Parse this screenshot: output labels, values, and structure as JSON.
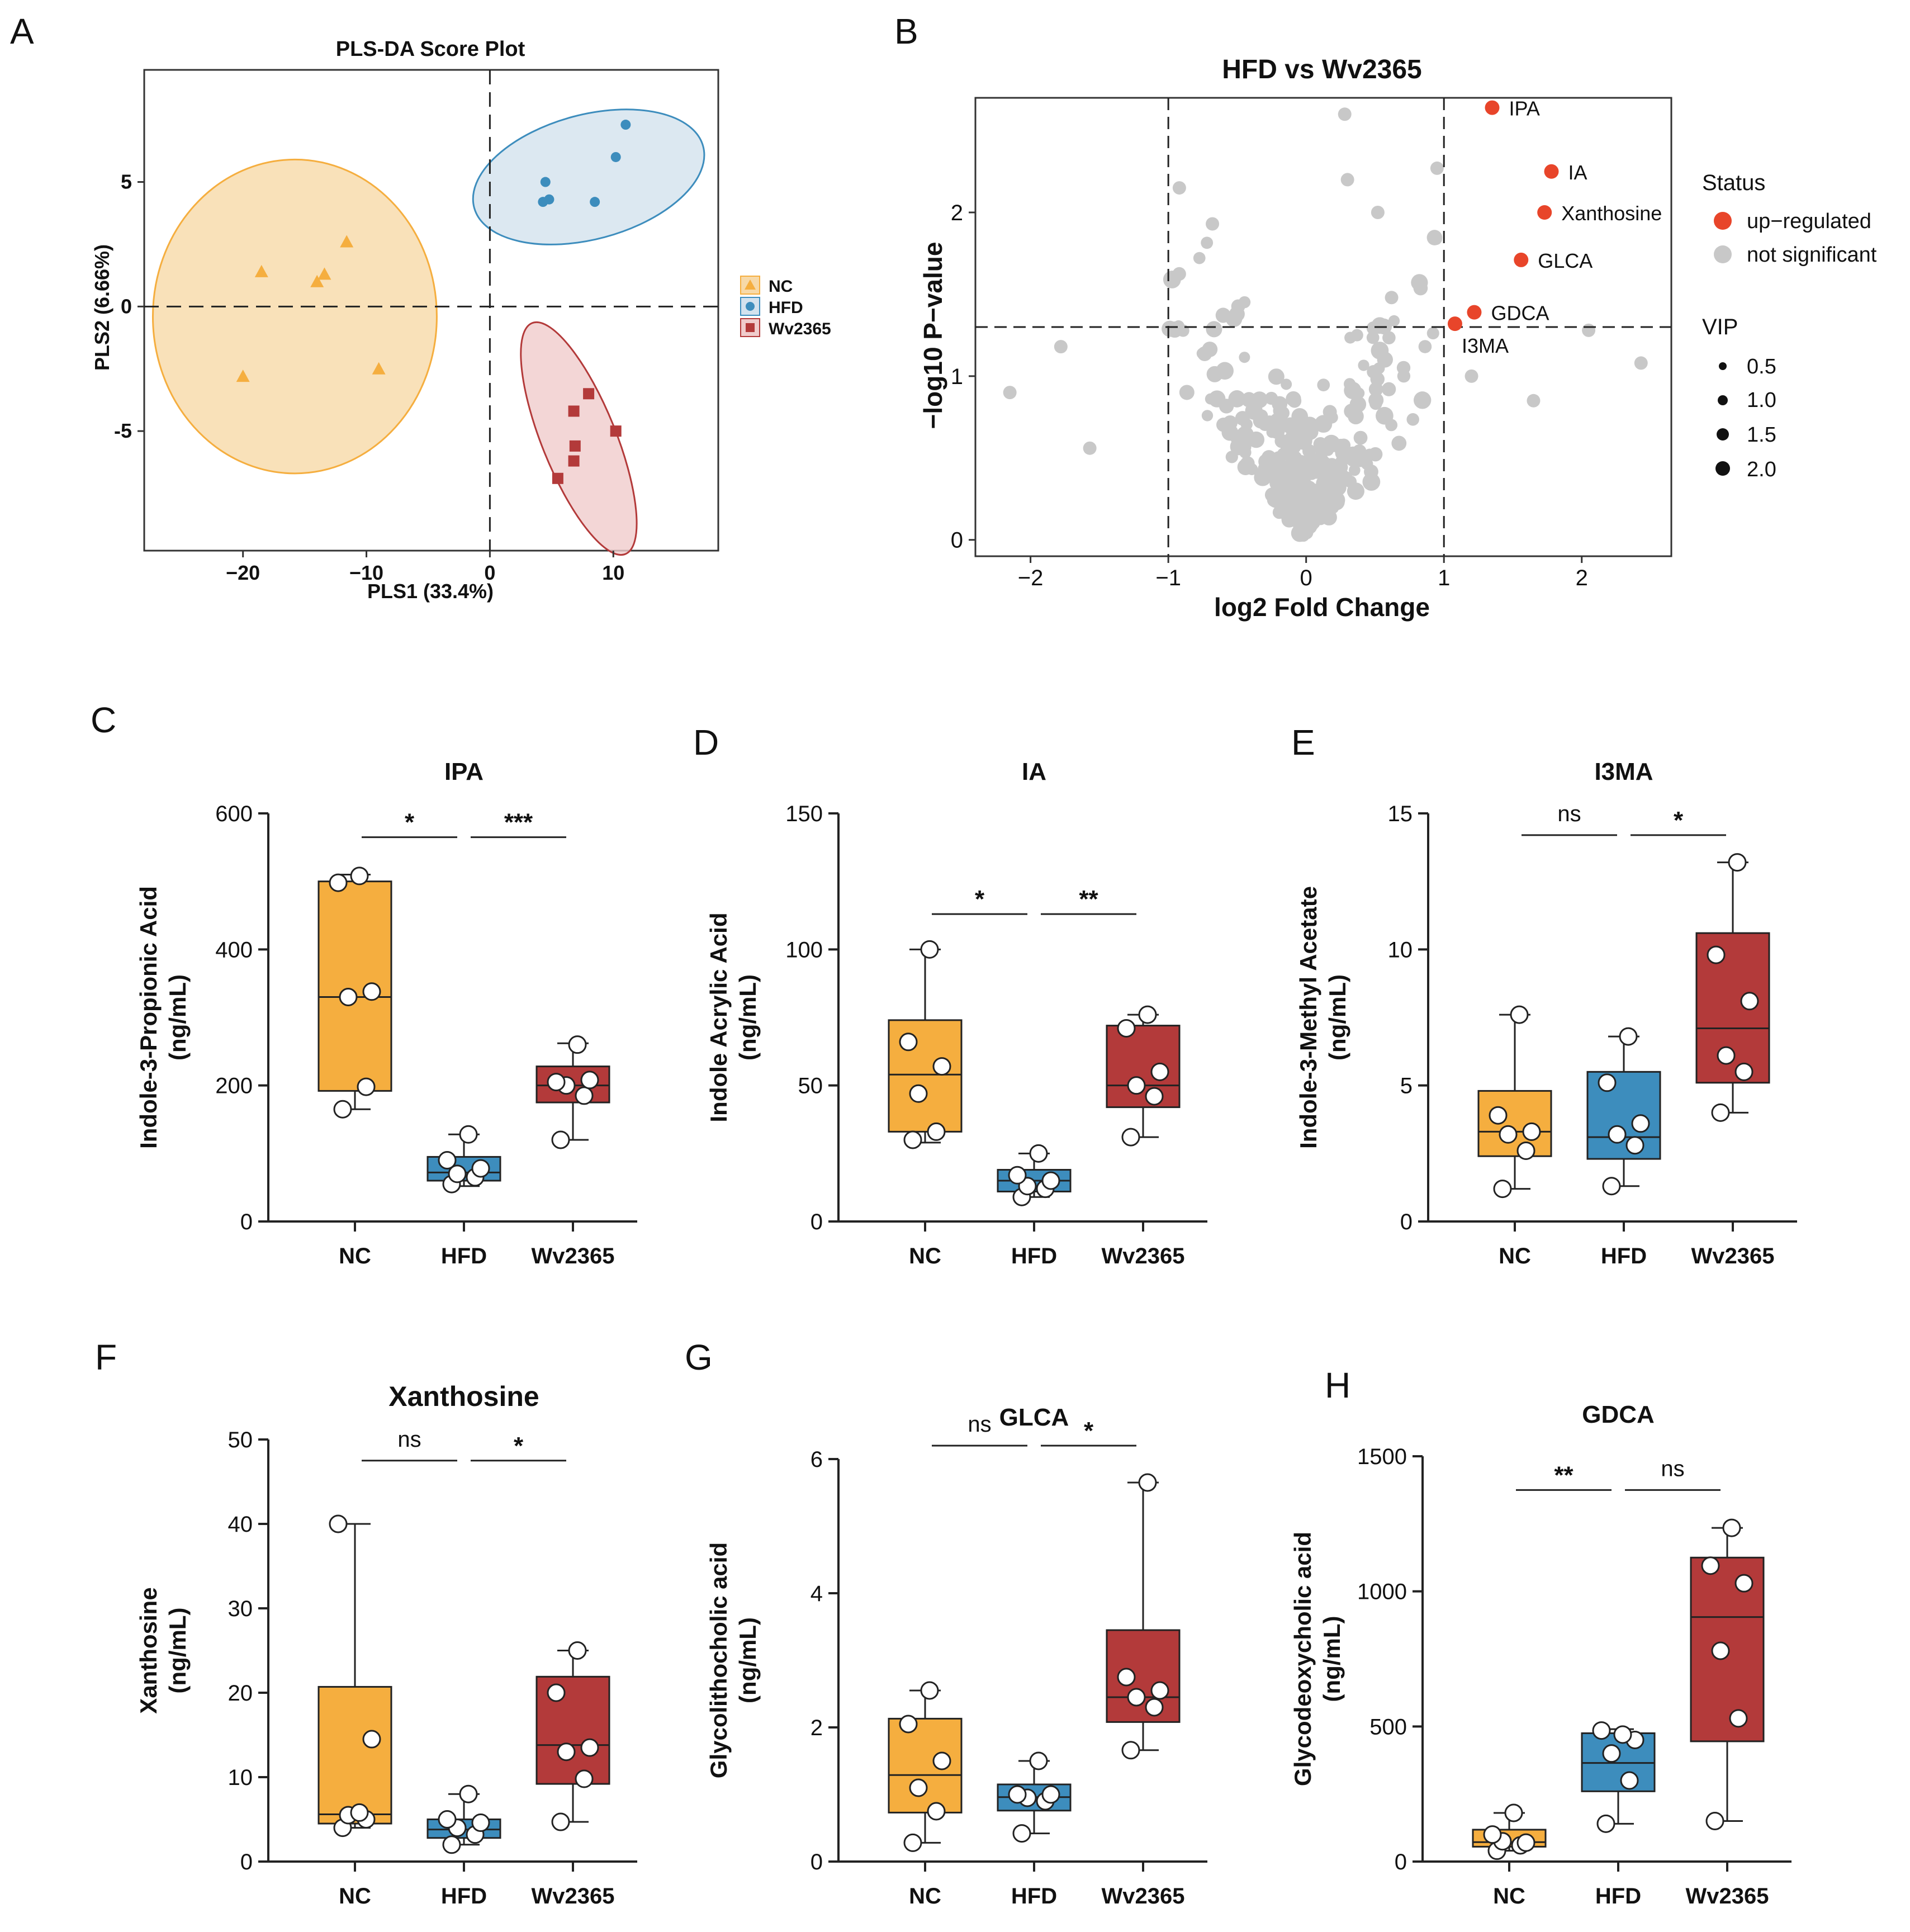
{
  "colors": {
    "nc": "#F5AE3F",
    "hfd": "#3D8DBD",
    "wv": "#B33A3A",
    "nc_ellipse": "#F7D9A8",
    "hfd_ellipse": "#D3E2EE",
    "wv_ellipse": "#F0CCCC",
    "up": "#E8452A",
    "ns": "#C8C8C8"
  },
  "panels": {
    "A": "A",
    "B": "B",
    "C": "C",
    "D": "D",
    "E": "E",
    "F": "F",
    "G": "G",
    "H": "H"
  },
  "plsda": {
    "title": "PLS-DA Score Plot",
    "xlabel": "PLS1 (33.4%)",
    "ylabel": "PLS2 (6.66%)",
    "xlim": [
      -28,
      18.5
    ],
    "ylim": [
      -9.8,
      9.5
    ],
    "xticks": [
      -20,
      -10,
      0,
      10
    ],
    "xtick_labels": [
      "−20",
      "−10",
      "0",
      "10"
    ],
    "yticks": [
      -5,
      0,
      5
    ],
    "ytick_labels": [
      "-5",
      "0",
      "5"
    ],
    "legend": [
      "NC",
      "HFD",
      "Wv2365"
    ],
    "groups": [
      {
        "name": "NC",
        "shape": "triangle",
        "points": [
          [
            -18.5,
            1.4
          ],
          [
            -14,
            1.0
          ],
          [
            -13.4,
            1.3
          ],
          [
            -11.6,
            2.6
          ],
          [
            -20,
            -2.8
          ],
          [
            -9,
            -2.5
          ]
        ],
        "ellipse": {
          "cx": -15.8,
          "cy": -0.4,
          "rx": 11.5,
          "ry": 6.3,
          "angle": 0
        }
      },
      {
        "name": "HFD",
        "shape": "circle",
        "points": [
          [
            4.3,
            4.2
          ],
          [
            4.5,
            5.0
          ],
          [
            4.8,
            4.3
          ],
          [
            8.5,
            4.2
          ],
          [
            10.2,
            6.0
          ],
          [
            11.0,
            7.3
          ]
        ],
        "ellipse": {
          "cx": 8.0,
          "cy": 5.2,
          "rx": 9.6,
          "ry": 2.5,
          "angle": 15
        }
      },
      {
        "name": "Wv2365",
        "shape": "square",
        "points": [
          [
            6.8,
            -4.2
          ],
          [
            8.0,
            -3.5
          ],
          [
            6.9,
            -5.6
          ],
          [
            6.8,
            -6.2
          ],
          [
            10.2,
            -5.0
          ],
          [
            5.5,
            -6.9
          ]
        ],
        "ellipse": {
          "cx": 7.2,
          "cy": -5.3,
          "rx": 3.0,
          "ry": 5.0,
          "angle": 22
        }
      }
    ]
  },
  "volcano": {
    "title": "HFD vs Wv2365",
    "xlabel": "log2 Fold Change",
    "ylabel": "−log10 P−value",
    "xlim": [
      -2.4,
      2.65
    ],
    "ylim": [
      -0.1,
      2.7
    ],
    "xticks": [
      -2,
      -1,
      0,
      1,
      2
    ],
    "xtick_labels": [
      "−2",
      "−1",
      "0",
      "1",
      "2"
    ],
    "yticks": [
      0,
      1,
      2
    ],
    "ytick_labels": [
      "0",
      "1",
      "2"
    ],
    "vlines": [
      -1,
      1
    ],
    "hline": 1.3,
    "legend_status_title": "Status",
    "legend_status": [
      "up−regulated",
      "not significant"
    ],
    "legend_vip_title": "VIP",
    "legend_vip": [
      "0.5",
      "1.0",
      "1.5",
      "2.0"
    ],
    "up": [
      {
        "label": "IPA",
        "x": 1.35,
        "y": 2.64
      },
      {
        "label": "IA",
        "x": 1.78,
        "y": 2.25
      },
      {
        "label": "Xanthosine",
        "x": 1.73,
        "y": 2.0
      },
      {
        "label": "GLCA",
        "x": 1.56,
        "y": 1.71
      },
      {
        "label": "GDCA",
        "x": 1.22,
        "y": 1.39
      },
      {
        "label": "I3MA",
        "x": 1.08,
        "y": 1.32
      }
    ]
  },
  "boxplots": [
    {
      "panel": "C",
      "title": "IPA",
      "ylabel1": "Indole-3-Propionic Acid",
      "ylabel2": "(ng/mL)",
      "ymax": 600,
      "yticks": [
        0,
        200,
        400,
        600
      ],
      "categories": [
        "NC",
        "HFD",
        "Wv2365"
      ],
      "groups": [
        {
          "whisker": [
            165,
            510
          ],
          "box": [
            192,
            500
          ],
          "median": 330,
          "points": [
            165,
            198,
            330,
            338,
            498,
            508
          ]
        },
        {
          "whisker": [
            52,
            128
          ],
          "box": [
            60,
            95
          ],
          "median": 72,
          "points": [
            55,
            65,
            70,
            78,
            90,
            128
          ]
        },
        {
          "whisker": [
            120,
            262
          ],
          "box": [
            175,
            228
          ],
          "median": 200,
          "points": [
            120,
            185,
            200,
            208,
            205,
            260
          ]
        }
      ],
      "sig": [
        {
          "a": 0,
          "b": 1,
          "label": "*"
        },
        {
          "a": 1,
          "b": 2,
          "label": "***"
        }
      ],
      "sig_y": 565
    },
    {
      "panel": "D",
      "title": "IA",
      "ylabel1": "Indole Acrylic Acid",
      "ylabel2": "(ng/mL)",
      "ymax": 150,
      "yticks": [
        0,
        50,
        100,
        150
      ],
      "categories": [
        "NC",
        "HFD",
        "Wv2365"
      ],
      "groups": [
        {
          "whisker": [
            29,
            100
          ],
          "box": [
            33,
            74
          ],
          "median": 54,
          "points": [
            30,
            33,
            47,
            57,
            66,
            100
          ]
        },
        {
          "whisker": [
            9,
            25
          ],
          "box": [
            11,
            19
          ],
          "median": 15,
          "points": [
            9,
            12,
            13,
            15,
            17,
            25
          ]
        },
        {
          "whisker": [
            31,
            76
          ],
          "box": [
            42,
            72
          ],
          "median": 50,
          "points": [
            31,
            46,
            50,
            55,
            71,
            76
          ]
        }
      ],
      "sig": [
        {
          "a": 0,
          "b": 1,
          "label": "*"
        },
        {
          "a": 1,
          "b": 2,
          "label": "**"
        }
      ],
      "sig_y": 113
    },
    {
      "panel": "E",
      "title": "I3MA",
      "ylabel1": "Indole-3-Methyl Acetate",
      "ylabel2": "(ng/mL)",
      "ymax": 15,
      "yticks": [
        0,
        5,
        10,
        15
      ],
      "categories": [
        "NC",
        "HFD",
        "Wv2365"
      ],
      "groups": [
        {
          "whisker": [
            1.2,
            7.6
          ],
          "box": [
            2.4,
            4.8
          ],
          "median": 3.3,
          "points": [
            1.2,
            2.6,
            3.2,
            3.3,
            3.9,
            7.6
          ]
        },
        {
          "whisker": [
            1.3,
            6.8
          ],
          "box": [
            2.3,
            5.5
          ],
          "median": 3.1,
          "points": [
            1.3,
            2.8,
            3.2,
            3.6,
            5.1,
            6.8
          ]
        },
        {
          "whisker": [
            4.0,
            13.2
          ],
          "box": [
            5.1,
            10.6
          ],
          "median": 7.1,
          "points": [
            4.0,
            5.5,
            6.1,
            8.1,
            9.8,
            13.2
          ]
        }
      ],
      "sig": [
        {
          "a": 0,
          "b": 1,
          "label": "ns"
        },
        {
          "a": 1,
          "b": 2,
          "label": "*"
        }
      ],
      "sig_y": 14.2
    },
    {
      "panel": "F",
      "title": "Xanthosine",
      "ylabel1": "Xanthosine",
      "ylabel2": "(ng/mL)",
      "ymax": 50,
      "yticks": [
        0,
        10,
        20,
        30,
        40,
        50
      ],
      "categories": [
        "NC",
        "HFD",
        "Wv2365"
      ],
      "groups": [
        {
          "whisker": [
            4,
            40
          ],
          "box": [
            4.5,
            20.7
          ],
          "median": 5.6,
          "points": [
            4,
            5,
            5.5,
            14.5,
            40,
            5.8
          ]
        },
        {
          "whisker": [
            2,
            8
          ],
          "box": [
            2.8,
            5
          ],
          "median": 3.8,
          "points": [
            2,
            3.2,
            4,
            4.6,
            5,
            8
          ]
        },
        {
          "whisker": [
            4.7,
            25
          ],
          "box": [
            9.2,
            21.9
          ],
          "median": 13.8,
          "points": [
            4.7,
            9.8,
            13,
            13.5,
            20,
            25
          ]
        }
      ],
      "sig": [
        {
          "a": 0,
          "b": 1,
          "label": "ns"
        },
        {
          "a": 1,
          "b": 2,
          "label": "*"
        }
      ],
      "sig_y": 47.5
    },
    {
      "panel": "G",
      "title": "GLCA",
      "ylabel1": "Glycolithocholic acid",
      "ylabel2": "(ng/mL)",
      "ymax": 6,
      "yticks": [
        0,
        2,
        4,
        6
      ],
      "categories": [
        "NC",
        "HFD",
        "Wv2365"
      ],
      "groups": [
        {
          "whisker": [
            0.28,
            2.55
          ],
          "box": [
            0.73,
            2.13
          ],
          "median": 1.29,
          "points": [
            0.28,
            0.75,
            1.1,
            1.5,
            2.05,
            2.55
          ]
        },
        {
          "whisker": [
            0.42,
            1.5
          ],
          "box": [
            0.76,
            1.15
          ],
          "median": 0.96,
          "points": [
            0.42,
            0.9,
            0.95,
            1.0,
            1.0,
            1.5
          ]
        },
        {
          "whisker": [
            1.66,
            5.65
          ],
          "box": [
            2.08,
            3.45
          ],
          "median": 2.45,
          "points": [
            1.66,
            2.3,
            2.45,
            2.55,
            2.75,
            5.65
          ]
        }
      ],
      "sig": [
        {
          "a": 0,
          "b": 1,
          "label": "ns"
        },
        {
          "a": 1,
          "b": 2,
          "label": "*"
        }
      ],
      "sig_y": 6.2
    },
    {
      "panel": "H",
      "title": "GDCA",
      "ylabel1": "Glycodeoxycholic acid",
      "ylabel2": "(ng/mL)",
      "ymax": 1500,
      "yticks": [
        0,
        500,
        1000,
        1500
      ],
      "categories": [
        "NC",
        "HFD",
        "Wv2365"
      ],
      "groups": [
        {
          "whisker": [
            40,
            180
          ],
          "box": [
            55,
            118
          ],
          "median": 72,
          "points": [
            40,
            60,
            75,
            70,
            100,
            180
          ]
        },
        {
          "whisker": [
            140,
            490
          ],
          "box": [
            260,
            475
          ],
          "median": 365,
          "points": [
            140,
            300,
            400,
            450,
            485,
            470
          ]
        },
        {
          "whisker": [
            150,
            1235
          ],
          "box": [
            445,
            1125
          ],
          "median": 905,
          "points": [
            150,
            530,
            780,
            1030,
            1095,
            1235
          ]
        }
      ],
      "sig": [
        {
          "a": 0,
          "b": 1,
          "label": "**"
        },
        {
          "a": 1,
          "b": 2,
          "label": "ns"
        }
      ],
      "sig_y": 1375
    }
  ],
  "chart_data": [
    {
      "type": "scatter",
      "title": "PLS-DA Score Plot",
      "xlabel": "PLS1 (33.4%)",
      "ylabel": "PLS2 (6.66%)",
      "series": [
        "NC",
        "HFD",
        "Wv2365"
      ]
    },
    {
      "type": "scatter",
      "title": "HFD vs Wv2365",
      "xlabel": "log2 Fold Change",
      "ylabel": "−log10 P−value",
      "xlim": [
        -2.4,
        2.65
      ],
      "ylim": [
        -0.1,
        2.7
      ]
    },
    {
      "type": "bar",
      "title": "IPA",
      "categories": [
        "NC",
        "HFD",
        "Wv2365"
      ],
      "values": [
        330,
        72,
        200
      ],
      "ylabel": "Indole-3-Propionic Acid (ng/mL)",
      "ylim": [
        0,
        600
      ]
    },
    {
      "type": "bar",
      "title": "IA",
      "categories": [
        "NC",
        "HFD",
        "Wv2365"
      ],
      "values": [
        54,
        15,
        50
      ],
      "ylabel": "Indole Acrylic Acid (ng/mL)",
      "ylim": [
        0,
        150
      ]
    },
    {
      "type": "bar",
      "title": "I3MA",
      "categories": [
        "NC",
        "HFD",
        "Wv2365"
      ],
      "values": [
        3.3,
        3.1,
        7.1
      ],
      "ylabel": "Indole-3-Methyl Acetate (ng/mL)",
      "ylim": [
        0,
        15
      ]
    },
    {
      "type": "bar",
      "title": "Xanthosine",
      "categories": [
        "NC",
        "HFD",
        "Wv2365"
      ],
      "values": [
        5.6,
        3.8,
        13.8
      ],
      "ylabel": "Xanthosine (ng/mL)",
      "ylim": [
        0,
        50
      ]
    },
    {
      "type": "bar",
      "title": "GLCA",
      "categories": [
        "NC",
        "HFD",
        "Wv2365"
      ],
      "values": [
        1.29,
        0.96,
        2.45
      ],
      "ylabel": "Glycolithocholic acid (ng/mL)",
      "ylim": [
        0,
        6
      ]
    },
    {
      "type": "bar",
      "title": "GDCA",
      "categories": [
        "NC",
        "HFD",
        "Wv2365"
      ],
      "values": [
        72,
        365,
        905
      ],
      "ylabel": "Glycodeoxycholic acid (ng/mL)",
      "ylim": [
        0,
        1500
      ]
    }
  ]
}
